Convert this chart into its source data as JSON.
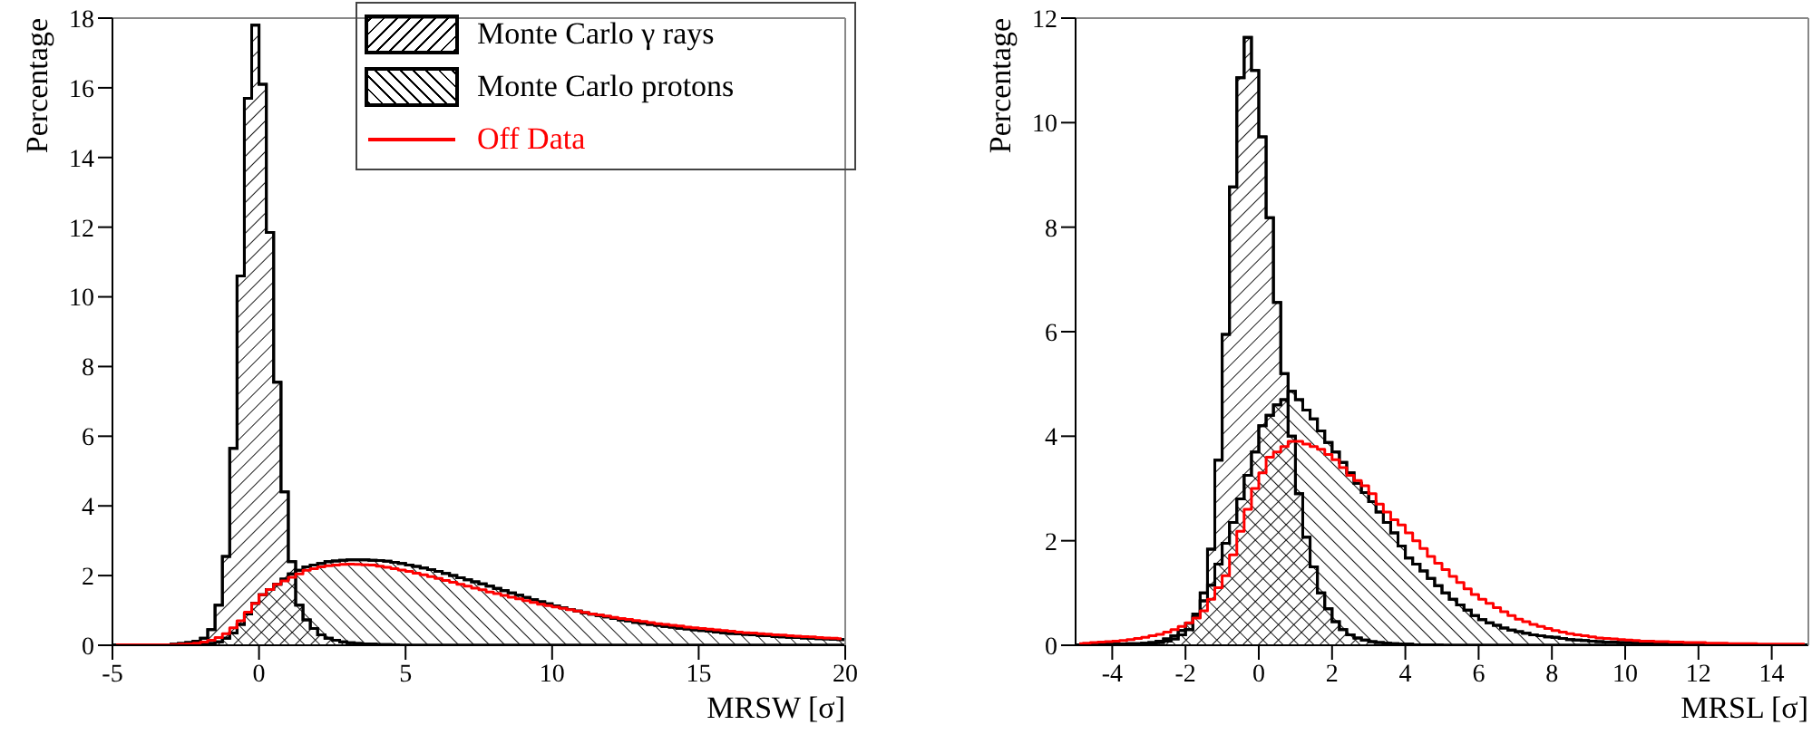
{
  "chart_data": [
    {
      "type": "histogram",
      "xlabel": "MRSW [σ]",
      "ylabel": "Percentage",
      "xlim": [
        -5,
        20
      ],
      "xticks": [
        -5,
        0,
        5,
        10,
        15,
        20
      ],
      "ylim": [
        0,
        18
      ],
      "yticks": [
        0,
        2,
        4,
        6,
        8,
        10,
        12,
        14,
        16,
        18
      ],
      "grid": false,
      "legend": "top right",
      "bins": [
        -5,
        -4.75,
        -4.5,
        -4.25,
        -4,
        -3.75,
        -3.5,
        -3.25,
        -3,
        -2.75,
        -2.5,
        -2.25,
        -2,
        -1.75,
        -1.5,
        -1.25,
        -1,
        -0.75,
        -0.5,
        -0.25,
        0,
        0.25,
        0.5,
        0.75,
        1,
        1.25,
        1.5,
        1.75,
        2,
        2.25,
        2.5,
        2.75,
        3,
        3.25,
        3.5,
        3.75,
        4,
        4.25,
        4.5,
        4.75,
        5,
        5.25,
        5.5,
        5.75,
        6,
        6.25,
        6.5,
        6.75,
        7,
        7.25,
        7.5,
        7.75,
        8,
        8.25,
        8.5,
        8.75,
        9,
        9.25,
        9.5,
        9.75,
        10,
        10.25,
        10.5,
        10.75,
        11,
        11.25,
        11.5,
        11.75,
        12,
        12.25,
        12.5,
        12.75,
        13,
        13.25,
        13.5,
        13.75,
        14,
        14.25,
        14.5,
        14.75,
        15,
        15.25,
        15.5,
        15.75,
        16,
        16.25,
        16.5,
        16.75,
        17,
        17.25,
        17.5,
        17.75,
        18,
        18.25,
        18.5,
        18.75,
        19,
        19.25,
        19.5,
        19.75,
        20
      ],
      "series": [
        {
          "name": "Monte Carlo γ rays",
          "color": "#000000",
          "values": [
            0,
            0,
            0,
            0,
            0,
            0,
            0,
            0,
            0.03,
            0.05,
            0.08,
            0.12,
            0.2,
            0.45,
            1.15,
            2.55,
            5.65,
            10.6,
            15.7,
            17.8,
            16.1,
            11.85,
            7.55,
            4.4,
            2.4,
            1.15,
            0.73,
            0.48,
            0.3,
            0.2,
            0.14,
            0.1,
            0.07,
            0.05,
            0.04,
            0.03,
            0.02,
            0.02,
            0.01,
            0,
            0,
            0,
            0,
            0,
            0,
            0,
            0,
            0,
            0,
            0,
            0,
            0,
            0,
            0,
            0,
            0,
            0,
            0,
            0,
            0,
            0,
            0,
            0,
            0,
            0,
            0,
            0,
            0,
            0,
            0,
            0,
            0,
            0,
            0,
            0,
            0,
            0,
            0,
            0,
            0,
            0,
            0,
            0,
            0,
            0,
            0,
            0,
            0,
            0,
            0,
            0,
            0,
            0,
            0,
            0,
            0,
            0,
            0,
            0,
            0
          ]
        },
        {
          "name": "Monte Carlo protons",
          "color": "#000000",
          "values": [
            0,
            0,
            0,
            0,
            0,
            0,
            0,
            0,
            0,
            0,
            0,
            0,
            0.02,
            0.05,
            0.1,
            0.2,
            0.35,
            0.6,
            0.9,
            1.2,
            1.45,
            1.6,
            1.75,
            1.9,
            2.05,
            2.15,
            2.25,
            2.3,
            2.35,
            2.4,
            2.42,
            2.44,
            2.45,
            2.45,
            2.45,
            2.44,
            2.43,
            2.41,
            2.38,
            2.35,
            2.3,
            2.26,
            2.22,
            2.17,
            2.12,
            2.06,
            2.0,
            1.94,
            1.88,
            1.82,
            1.76,
            1.7,
            1.63,
            1.57,
            1.5,
            1.44,
            1.37,
            1.31,
            1.25,
            1.19,
            1.13,
            1.08,
            1.03,
            0.98,
            0.93,
            0.89,
            0.85,
            0.81,
            0.77,
            0.73,
            0.7,
            0.66,
            0.63,
            0.6,
            0.57,
            0.54,
            0.52,
            0.49,
            0.47,
            0.44,
            0.42,
            0.4,
            0.38,
            0.36,
            0.34,
            0.33,
            0.31,
            0.3,
            0.28,
            0.27,
            0.25,
            0.24,
            0.23,
            0.22,
            0.21,
            0.2,
            0.19,
            0.18,
            0.17,
            0.16
          ]
        },
        {
          "name": "Off Data",
          "type": "step",
          "color": "#ff0000",
          "x": [
            -4.875,
            -4.625,
            -4.375,
            -4.125,
            -3.875,
            -3.625,
            -3.375,
            -3.125,
            -2.875,
            -2.625,
            -2.375,
            -2.125,
            -1.875,
            -1.625,
            -1.375,
            -1.125,
            -0.875,
            -0.625,
            -0.375,
            -0.125,
            0.125,
            0.375,
            0.625,
            0.875,
            1.125,
            1.375,
            1.625,
            1.875,
            2.125,
            2.375,
            2.625,
            2.875,
            3.125,
            3.375,
            3.625,
            3.875,
            4.125,
            4.375,
            4.625,
            4.875,
            5.125,
            5.375,
            5.625,
            5.875,
            6.125,
            6.375,
            6.625,
            6.875,
            7.125,
            7.375,
            7.625,
            7.875,
            8.125,
            8.375,
            8.625,
            8.875,
            9.125,
            9.375,
            9.625,
            9.875,
            10.125,
            10.375,
            10.625,
            10.875,
            11.125,
            11.375,
            11.625,
            11.875,
            12.125,
            12.375,
            12.625,
            12.875,
            13.125,
            13.375,
            13.625,
            13.875,
            14.125,
            14.375,
            14.625,
            14.875,
            15.125,
            15.375,
            15.625,
            15.875,
            16.125,
            16.375,
            16.625,
            16.875,
            17.125,
            17.375,
            17.625,
            17.875,
            18.125,
            18.375,
            18.625,
            18.875,
            19.125,
            19.375,
            19.625,
            19.875
          ],
          "values": [
            0.01,
            0.01,
            0.01,
            0.01,
            0.01,
            0.01,
            0.01,
            0.01,
            0.02,
            0.03,
            0.04,
            0.06,
            0.09,
            0.14,
            0.22,
            0.33,
            0.5,
            0.7,
            0.95,
            1.2,
            1.45,
            1.6,
            1.75,
            1.85,
            1.95,
            2.05,
            2.15,
            2.2,
            2.25,
            2.28,
            2.3,
            2.32,
            2.33,
            2.32,
            2.31,
            2.3,
            2.27,
            2.24,
            2.2,
            2.16,
            2.12,
            2.07,
            2.02,
            1.97,
            1.92,
            1.86,
            1.81,
            1.75,
            1.7,
            1.64,
            1.59,
            1.53,
            1.48,
            1.43,
            1.38,
            1.33,
            1.28,
            1.23,
            1.18,
            1.14,
            1.1,
            1.06,
            1.02,
            0.98,
            0.94,
            0.9,
            0.87,
            0.84,
            0.8,
            0.77,
            0.74,
            0.71,
            0.68,
            0.65,
            0.62,
            0.6,
            0.57,
            0.55,
            0.52,
            0.5,
            0.48,
            0.46,
            0.44,
            0.42,
            0.4,
            0.38,
            0.36,
            0.35,
            0.33,
            0.32,
            0.3,
            0.29,
            0.27,
            0.26,
            0.25,
            0.24,
            0.22,
            0.21,
            0.2,
            0.19
          ]
        }
      ]
    },
    {
      "type": "histogram",
      "xlabel": "MRSL [σ]",
      "ylabel": "Percentage",
      "xlim": [
        -5,
        15
      ],
      "xticks": [
        -4,
        -2,
        0,
        2,
        4,
        6,
        8,
        10,
        12,
        14
      ],
      "ylim": [
        0,
        12
      ],
      "yticks": [
        0,
        2,
        4,
        6,
        8,
        10,
        12
      ],
      "grid": false,
      "bins": [
        -5,
        -4.8,
        -4.6,
        -4.4,
        -4.2,
        -4,
        -3.8,
        -3.6,
        -3.4,
        -3.2,
        -3,
        -2.8,
        -2.6,
        -2.4,
        -2.2,
        -2,
        -1.8,
        -1.6,
        -1.4,
        -1.2,
        -1,
        -0.8,
        -0.6,
        -0.4,
        -0.2,
        0,
        0.2,
        0.4,
        0.6,
        0.8,
        1,
        1.2,
        1.4,
        1.6,
        1.8,
        2,
        2.2,
        2.4,
        2.6,
        2.8,
        3,
        3.2,
        3.4,
        3.6,
        3.8,
        4,
        4.2,
        4.4,
        4.6,
        4.8,
        5,
        5.2,
        5.4,
        5.6,
        5.8,
        6,
        6.2,
        6.4,
        6.6,
        6.8,
        7,
        7.2,
        7.4,
        7.6,
        7.8,
        8,
        8.2,
        8.4,
        8.6,
        8.8,
        9,
        9.2,
        9.4,
        9.6,
        9.8,
        10,
        10.2,
        10.4,
        10.6,
        10.8,
        11,
        11.2,
        11.4,
        11.6,
        11.8,
        12,
        12.2,
        12.4,
        12.6,
        12.8,
        13,
        13.2,
        13.4,
        13.6,
        13.8,
        14,
        14.2,
        14.4,
        14.6,
        14.8,
        15
      ],
      "series": [
        {
          "color": "#000000",
          "values": [
            0,
            0,
            0,
            0,
            0.01,
            0.01,
            0.01,
            0.01,
            0.02,
            0.02,
            0.03,
            0.05,
            0.08,
            0.12,
            0.2,
            0.3,
            0.54,
            1.0,
            1.84,
            3.54,
            5.95,
            8.77,
            10.86,
            11.63,
            11.0,
            9.73,
            8.18,
            6.56,
            5.2,
            4.0,
            2.9,
            2.07,
            1.5,
            1.0,
            0.7,
            0.45,
            0.3,
            0.2,
            0.14,
            0.1,
            0.07,
            0.05,
            0.04,
            0.03,
            0.02,
            0.02,
            0.01,
            0.01,
            0.01,
            0.01,
            0,
            0,
            0,
            0,
            0,
            0,
            0,
            0,
            0,
            0,
            0,
            0,
            0,
            0,
            0,
            0,
            0,
            0,
            0,
            0,
            0,
            0,
            0,
            0,
            0,
            0,
            0,
            0,
            0,
            0,
            0,
            0,
            0,
            0,
            0,
            0,
            0,
            0,
            0,
            0,
            0,
            0,
            0,
            0,
            0,
            0,
            0,
            0,
            0,
            0
          ]
        },
        {
          "color": "#000000",
          "values": [
            0.01,
            0.01,
            0.01,
            0.01,
            0.02,
            0.02,
            0.02,
            0.03,
            0.03,
            0.04,
            0.05,
            0.08,
            0.12,
            0.18,
            0.28,
            0.42,
            0.6,
            0.85,
            1.15,
            1.55,
            1.95,
            2.35,
            2.8,
            3.25,
            3.7,
            4.2,
            4.4,
            4.6,
            4.7,
            4.86,
            4.7,
            4.5,
            4.33,
            4.1,
            3.88,
            3.7,
            3.5,
            3.3,
            3.1,
            2.92,
            2.75,
            2.55,
            2.35,
            2.15,
            1.9,
            1.67,
            1.55,
            1.42,
            1.28,
            1.14,
            1.0,
            0.88,
            0.77,
            0.67,
            0.57,
            0.49,
            0.43,
            0.38,
            0.33,
            0.29,
            0.26,
            0.23,
            0.2,
            0.18,
            0.16,
            0.15,
            0.13,
            0.11,
            0.1,
            0.09,
            0.08,
            0.07,
            0.06,
            0.06,
            0.05,
            0.05,
            0.04,
            0.04,
            0.03,
            0.03,
            0.03,
            0.03,
            0.02,
            0.02,
            0.02,
            0.02,
            0.02,
            0.01,
            0.01,
            0.01,
            0.01,
            0.01,
            0.01,
            0.01,
            0.01,
            0.01,
            0.01,
            0.01,
            0.01,
            0.01
          ]
        },
        {
          "type": "step",
          "color": "#ff0000",
          "x": [
            -4.9,
            -4.7,
            -4.5,
            -4.3,
            -4.1,
            -3.9,
            -3.7,
            -3.5,
            -3.3,
            -3.1,
            -2.9,
            -2.7,
            -2.5,
            -2.3,
            -2.1,
            -1.9,
            -1.7,
            -1.5,
            -1.3,
            -1.1,
            -0.9,
            -0.7,
            -0.5,
            -0.3,
            -0.1,
            0.1,
            0.3,
            0.5,
            0.7,
            0.9,
            1.1,
            1.3,
            1.5,
            1.7,
            1.9,
            2.1,
            2.3,
            2.5,
            2.7,
            2.9,
            3.1,
            3.3,
            3.5,
            3.7,
            3.9,
            4.1,
            4.3,
            4.5,
            4.7,
            4.9,
            5.1,
            5.3,
            5.5,
            5.7,
            5.9,
            6.1,
            6.3,
            6.5,
            6.7,
            6.9,
            7.1,
            7.3,
            7.5,
            7.7,
            7.9,
            8.1,
            8.3,
            8.5,
            8.7,
            8.9,
            9.1,
            9.3,
            9.5,
            9.7,
            9.9,
            10.1,
            10.3,
            10.5,
            10.7,
            10.9,
            11.1,
            11.3,
            11.5,
            11.7,
            11.9,
            12.1,
            12.3,
            12.5,
            12.7,
            12.9,
            13.1,
            13.3,
            13.5,
            13.7,
            13.9,
            14.1,
            14.3,
            14.5,
            14.7,
            14.9
          ],
          "values": [
            0.03,
            0.04,
            0.05,
            0.06,
            0.07,
            0.08,
            0.09,
            0.11,
            0.13,
            0.15,
            0.18,
            0.21,
            0.25,
            0.3,
            0.36,
            0.43,
            0.52,
            0.66,
            0.88,
            1.1,
            1.33,
            1.73,
            2.18,
            2.6,
            3.0,
            3.3,
            3.6,
            3.7,
            3.8,
            3.9,
            3.9,
            3.85,
            3.8,
            3.75,
            3.65,
            3.55,
            3.4,
            3.25,
            3.15,
            3.05,
            2.9,
            2.7,
            2.55,
            2.4,
            2.3,
            2.15,
            2.0,
            1.85,
            1.7,
            1.57,
            1.45,
            1.32,
            1.2,
            1.08,
            0.97,
            0.88,
            0.8,
            0.72,
            0.64,
            0.57,
            0.5,
            0.45,
            0.4,
            0.36,
            0.32,
            0.28,
            0.25,
            0.22,
            0.2,
            0.18,
            0.16,
            0.14,
            0.13,
            0.12,
            0.11,
            0.1,
            0.09,
            0.08,
            0.08,
            0.07,
            0.07,
            0.06,
            0.06,
            0.05,
            0.05,
            0.05,
            0.04,
            0.04,
            0.04,
            0.03,
            0.03,
            0.03,
            0.03,
            0.02,
            0.02,
            0.02,
            0.02,
            0.02,
            0.02,
            0.02
          ]
        }
      ]
    }
  ]
}
